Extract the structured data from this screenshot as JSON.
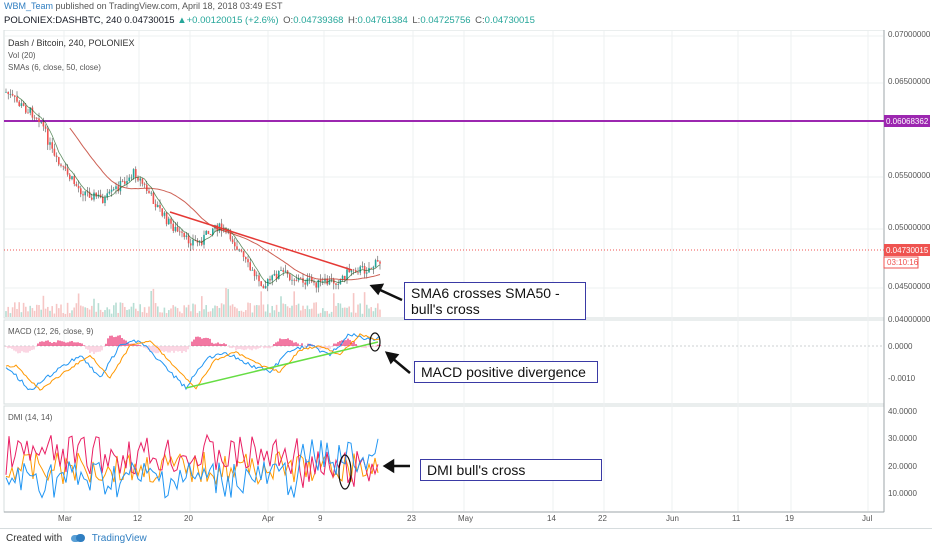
{
  "header": {
    "user": "WBM_Team",
    "published_text": "published on TradingView.com, April 18, 2018 03:49 EST",
    "symbol_line": "POLONIEX:DASHBTC, 240",
    "price": "0.04730015",
    "change": "+0.00120015 (+2.6%)",
    "o_label": "O:",
    "o_value": "0.04739368",
    "h_label": "H:",
    "h_value": "0.04761384",
    "l_label": "L:",
    "l_value": "0.04725756",
    "c_label": "C:",
    "c_value": "0.04730015",
    "up_icon": "triangle-up-icon"
  },
  "legend": {
    "series": "Dash / Bitcoin, 240, POLONIEX",
    "vol": "Vol (20)",
    "smas": "SMAs (6, close, 50, close)",
    "macd": "MACD (12, 26, close, 9)",
    "dmi": "DMI (14, 14)"
  },
  "price_axis": [
    "0.07000000",
    "0.06500000",
    "0.05500000",
    "0.05000000",
    "0.04500000",
    "0.04000000"
  ],
  "price_tags": {
    "resistance": "0.06068362",
    "current": "0.04730015",
    "countdown": "03:10:16"
  },
  "macd_axis": [
    "0.0000",
    "-0.0010"
  ],
  "dmi_axis": [
    "40.0000",
    "30.0000",
    "20.0000",
    "10.0000"
  ],
  "time_axis": [
    "Mar",
    "12",
    "20",
    "Apr",
    "9",
    "23",
    "May",
    "14",
    "22",
    "Jun",
    "11",
    "19",
    "Jul"
  ],
  "annotations": {
    "sma": "SMA6 crosses SMA50 -",
    "sma2": "bull's cross",
    "macd": "MACD positive divergence",
    "dmi": "DMI bull's cross"
  },
  "footer": {
    "created_with": "Created with",
    "brand": "TradingView"
  },
  "colors": {
    "candle_up": "#26a69a",
    "candle_down": "#ef5350",
    "sma_slow": "#c0392b",
    "resistance": "#9c27b0",
    "trendline": "#e53935",
    "divergence": "#66dd44",
    "macd_line": "#2196f3",
    "signal_line": "#ff9800",
    "hist_pos": "#e91e63",
    "di_plus": "#2196f3",
    "di_minus": "#e91e63",
    "adx": "#ff9800"
  }
}
